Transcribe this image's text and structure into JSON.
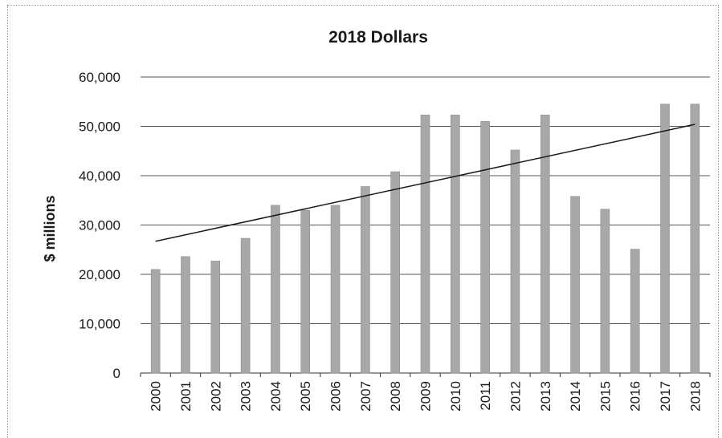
{
  "chart_data": {
    "type": "bar",
    "title": "2018 Dollars",
    "xlabel": "",
    "ylabel": "$ millions",
    "ylim": [
      0,
      60000
    ],
    "yticks": [
      "0",
      "10,000",
      "20,000",
      "30,000",
      "40,000",
      "50,000",
      "60,000"
    ],
    "categories": [
      "2000",
      "2001",
      "2002",
      "2003",
      "2004",
      "2005",
      "2006",
      "2007",
      "2008",
      "2009",
      "2010",
      "2011",
      "2012",
      "2013",
      "2014",
      "2015",
      "2016",
      "2017",
      "2018"
    ],
    "values": [
      21000,
      23600,
      22700,
      27300,
      34000,
      33000,
      34000,
      37800,
      40800,
      52300,
      52300,
      51000,
      45200,
      52300,
      35800,
      33200,
      25100,
      54500,
      54500
    ],
    "trendline": {
      "start": 26700,
      "end": 50400
    },
    "grid": true,
    "legend": "none",
    "bar_color": "#a8a8a8"
  }
}
